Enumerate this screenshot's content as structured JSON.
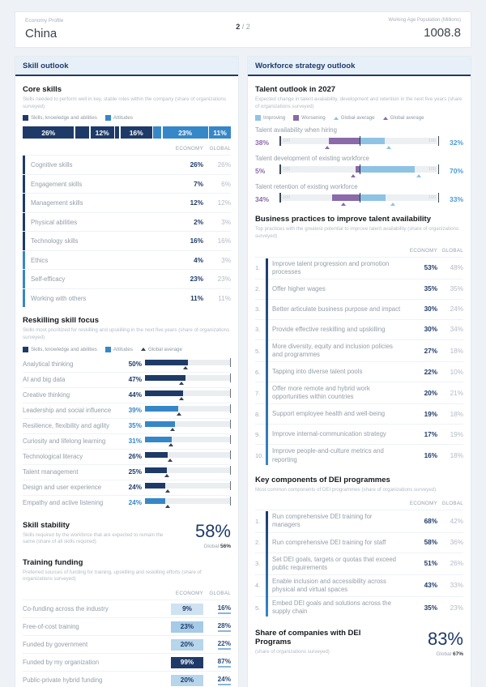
{
  "header": {
    "eyebrow": "Economy Profile",
    "title": "China",
    "page_current": "2",
    "page_sep": "/",
    "page_total": "2",
    "right_label": "Working Age Population (Millions)",
    "right_value": "1008.8"
  },
  "columns": {
    "economy": "ECONOMY",
    "global": "GLOBAL"
  },
  "colors": {
    "navy": "#1e3a68",
    "blue": "#3687c8",
    "light_blue": "#8fc3e3",
    "purple": "#8a6aa8",
    "marker": "#3a4149"
  },
  "left": {
    "section_title": "Skill outlook",
    "core_skills": {
      "title": "Core skills",
      "subtitle": "Skills needed to perform well in key, stable roles within the company (share of organizations surveyed)",
      "legend": [
        {
          "label": "Skills, knowledge and abilities",
          "group": "skills"
        },
        {
          "label": "Attitudes",
          "group": "attitudes"
        }
      ],
      "stacked": [
        {
          "value": 26,
          "label": "26%",
          "group": "skills"
        },
        {
          "value": 7,
          "label": "",
          "group": "skills"
        },
        {
          "value": 12,
          "label": "12%",
          "group": "skills"
        },
        {
          "value": 2,
          "label": "",
          "group": "skills"
        },
        {
          "value": 16,
          "label": "16%",
          "group": "skills"
        },
        {
          "value": 4,
          "label": "",
          "group": "attitudes"
        },
        {
          "value": 23,
          "label": "23%",
          "group": "attitudes"
        },
        {
          "value": 11,
          "label": "11%",
          "group": "attitudes"
        }
      ],
      "rows": [
        {
          "label": "Cognitive skills",
          "economy": "26%",
          "global": "26%",
          "group": "skills"
        },
        {
          "label": "Engagement skills",
          "economy": "7%",
          "global": "6%",
          "group": "skills"
        },
        {
          "label": "Management skills",
          "economy": "12%",
          "global": "12%",
          "group": "skills"
        },
        {
          "label": "Physical abilities",
          "economy": "2%",
          "global": "3%",
          "group": "skills"
        },
        {
          "label": "Technology skills",
          "economy": "16%",
          "global": "16%",
          "group": "skills"
        },
        {
          "label": "Ethics",
          "economy": "4%",
          "global": "3%",
          "group": "attitudes"
        },
        {
          "label": "Self-efficacy",
          "economy": "23%",
          "global": "23%",
          "group": "attitudes"
        },
        {
          "label": "Working with others",
          "economy": "11%",
          "global": "11%",
          "group": "attitudes"
        }
      ]
    },
    "reskilling": {
      "title": "Reskilling skill focus",
      "subtitle": "Skills most prioritized for reskilling and upskilling in the next five years (share of organizations surveyed)",
      "legend": [
        {
          "label": "Skills, knowledge and abilities",
          "group": "skills"
        },
        {
          "label": "Attitudes",
          "group": "attitudes"
        },
        {
          "label": "Global average",
          "group": "marker"
        }
      ],
      "scale_max": 100,
      "rows": [
        {
          "label": "Analytical thinking",
          "value": 50,
          "display": "50%",
          "global_marker": 47,
          "group": "skills"
        },
        {
          "label": "AI and big data",
          "value": 47,
          "display": "47%",
          "global_marker": 42,
          "group": "skills"
        },
        {
          "label": "Creative thinking",
          "value": 44,
          "display": "44%",
          "global_marker": 42,
          "group": "skills"
        },
        {
          "label": "Leadership and social influence",
          "value": 39,
          "display": "39%",
          "global_marker": 40,
          "group": "attitudes"
        },
        {
          "label": "Resilience, flexibility and agility",
          "value": 35,
          "display": "35%",
          "global_marker": 32,
          "group": "attitudes"
        },
        {
          "label": "Curiosity and lifelong learning",
          "value": 31,
          "display": "31%",
          "global_marker": 30,
          "group": "attitudes"
        },
        {
          "label": "Technological literacy",
          "value": 26,
          "display": "26%",
          "global_marker": 29,
          "group": "skills"
        },
        {
          "label": "Talent management",
          "value": 25,
          "display": "25%",
          "global_marker": 25,
          "group": "skills"
        },
        {
          "label": "Design and user experience",
          "value": 24,
          "display": "24%",
          "global_marker": 26,
          "group": "skills"
        },
        {
          "label": "Empathy and active listening",
          "value": 24,
          "display": "24%",
          "global_marker": 26,
          "group": "attitudes"
        }
      ]
    },
    "skill_stability": {
      "title": "Skill stability",
      "subtitle": "Skills required by the workforce that are expected to remain the same (share of all skills required)",
      "value": "58%",
      "global_label": "Global",
      "global_value": "56%"
    },
    "training_funding": {
      "title": "Training funding",
      "subtitle": "Preferred sources of funding for training, upskilling and reskilling efforts (share of organizations surveyed)",
      "rows": [
        {
          "label": "Co-funding across the industry",
          "economy": "9%",
          "global": "16%",
          "chip_bg": "#cfe2f1",
          "chip_fg": "#1e3a68"
        },
        {
          "label": "Free-of-cost training",
          "economy": "23%",
          "global": "28%",
          "chip_bg": "#a6cbe6",
          "chip_fg": "#1e3a68"
        },
        {
          "label": "Funded by government",
          "economy": "20%",
          "global": "22%",
          "chip_bg": "#b7d5eb",
          "chip_fg": "#1e3a68"
        },
        {
          "label": "Funded by my organization",
          "economy": "99%",
          "global": "87%",
          "chip_bg": "#1e3a68",
          "chip_fg": "#ffffff"
        },
        {
          "label": "Public-private hybrid funding",
          "economy": "20%",
          "global": "24%",
          "chip_bg": "#b7d5eb",
          "chip_fg": "#1e3a68"
        }
      ]
    }
  },
  "right": {
    "section_title": "Workforce strategy outlook",
    "talent_outlook": {
      "title": "Talent outlook in 2027",
      "subtitle": "Expected change in talent availability, development and retention in the next five years (share of organizations surveyed)",
      "legend": [
        {
          "label": "Improving",
          "group": "improving"
        },
        {
          "label": "Worsening",
          "group": "worsening"
        },
        {
          "label": "Global average",
          "group": "marker-improving"
        },
        {
          "label": "Global average",
          "group": "marker-worsening"
        }
      ],
      "axis_end_label": "100",
      "rows": [
        {
          "label": "Talent availability when hiring",
          "worsening": 38,
          "worsening_display": "38%",
          "improving": 32,
          "improving_display": "32%",
          "worsening_global": 40,
          "improving_global": 37
        },
        {
          "label": "Talent development of existing workforce",
          "worsening": 5,
          "worsening_display": "5%",
          "improving": 70,
          "improving_display": "70%",
          "worsening_global": 8,
          "improving_global": 75
        },
        {
          "label": "Talent retention of existing workforce",
          "worsening": 34,
          "worsening_display": "34%",
          "improving": 33,
          "improving_display": "33%",
          "worsening_global": 20,
          "improving_global": 42
        }
      ]
    },
    "business_practices": {
      "title": "Business practices to improve talent availability",
      "subtitle": "Top practices with the greatest potential to improve talent availability (share of organizations surveyed)",
      "rows": [
        {
          "rank": "1.",
          "label": "Improve talent progression and promotion processes",
          "economy": "53%",
          "global": "48%"
        },
        {
          "rank": "2.",
          "label": "Offer higher wages",
          "economy": "35%",
          "global": "35%"
        },
        {
          "rank": "3.",
          "label": "Better articulate business purpose and impact",
          "economy": "30%",
          "global": "24%"
        },
        {
          "rank": "3.",
          "label": "Provide effective reskilling and upskilling",
          "economy": "30%",
          "global": "34%"
        },
        {
          "rank": "5.",
          "label": "More diversity, equity and inclusion policies and programmes",
          "economy": "27%",
          "global": "18%"
        },
        {
          "rank": "6.",
          "label": "Tapping into diverse talent pools",
          "economy": "22%",
          "global": "10%"
        },
        {
          "rank": "7.",
          "label": "Offer more remote and hybrid work opportunities within countries",
          "economy": "20%",
          "global": "21%"
        },
        {
          "rank": "8.",
          "label": "Support employee health and well-being",
          "economy": "19%",
          "global": "18%"
        },
        {
          "rank": "9.",
          "label": "Improve internal-communication strategy",
          "economy": "17%",
          "global": "19%"
        },
        {
          "rank": "10.",
          "label": "Improve people-and-culture metrics and reporting",
          "economy": "16%",
          "global": "18%"
        }
      ]
    },
    "dei_components": {
      "title": "Key components of DEI programmes",
      "subtitle": "Most common components of DEI programmes (share of organizations surveyed)",
      "rows": [
        {
          "rank": "1.",
          "label": "Run comprehensive DEI training for managers",
          "economy": "68%",
          "global": "42%"
        },
        {
          "rank": "2.",
          "label": "Run comprehensive DEI training for staff",
          "economy": "58%",
          "global": "36%"
        },
        {
          "rank": "3.",
          "label": "Set DEI goals, targets or quotas that exceed public requirements",
          "economy": "51%",
          "global": "26%"
        },
        {
          "rank": "4.",
          "label": "Enable inclusion and accessibility across physical and virtual spaces",
          "economy": "43%",
          "global": "33%"
        },
        {
          "rank": "5.",
          "label": "Embed DEI goals and solutions across the supply chain",
          "economy": "35%",
          "global": "23%"
        }
      ]
    },
    "dei_share": {
      "title": "Share of companies with DEI Programs",
      "subtitle": "(share of organizations surveyed)",
      "value": "83%",
      "global_label": "Global",
      "global_value": "67%"
    }
  }
}
